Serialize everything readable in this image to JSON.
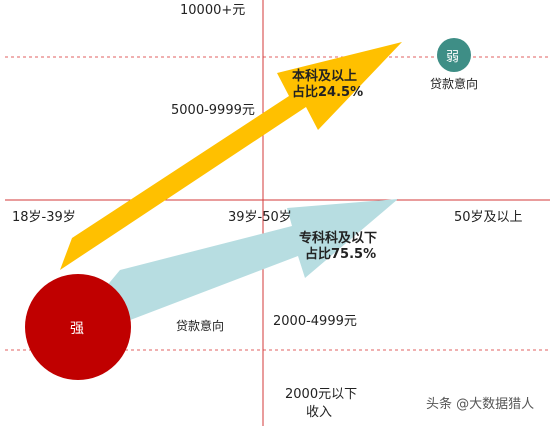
{
  "axes": {
    "y_top": "10000+元",
    "y_upper": "5000-9999元",
    "y_lower": "2000-4999元",
    "y_bottom_line1": "2000元以下",
    "y_bottom_line2": "收入",
    "x_left": "18岁-39岁",
    "x_center": "39岁-50岁",
    "x_right": "50岁及以上"
  },
  "arrows": {
    "upper_line1": "本科及以上",
    "upper_line2": "占比24.5%",
    "lower_line1": "专科科及以下",
    "lower_line2": "占比75.5%"
  },
  "circles": {
    "strong_label": "强",
    "strong_caption": "贷款意向",
    "weak_label": "弱",
    "weak_caption": "贷款意向"
  },
  "watermark": "头条 @大数据猎人",
  "colors": {
    "gold_arrow": "#FFC000",
    "teal_arrow": "#B7DDE1",
    "strong_circle": "#C00000",
    "weak_circle": "#3E8E86",
    "axis_line": "#D33A3A"
  }
}
